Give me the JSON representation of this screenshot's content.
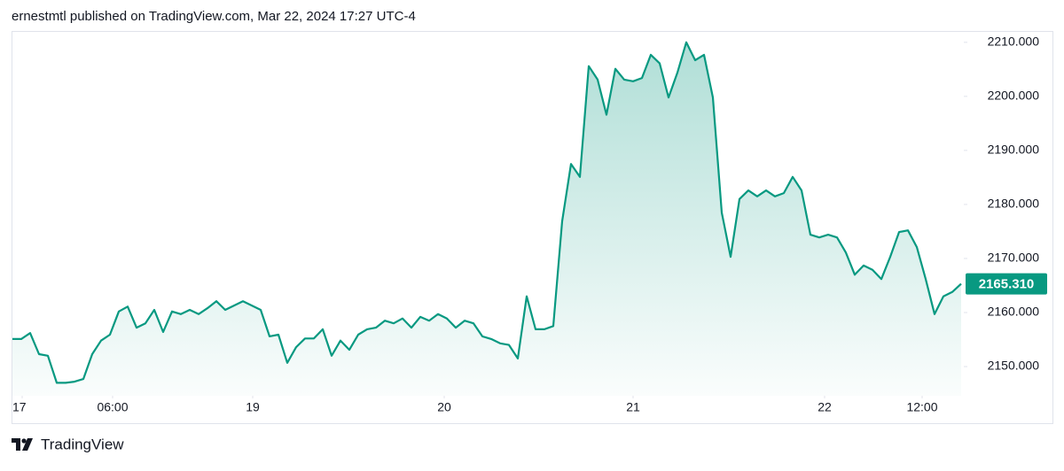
{
  "chart_data": {
    "type": "area",
    "title": "ernestmtl published on TradingView.com, Mar 22, 2024 17:27 UTC-4",
    "color": "#089981",
    "values": [
      2155.1,
      2155.1,
      2156.2,
      2152.3,
      2152.0,
      2147.0,
      2147.0,
      2147.2,
      2147.7,
      2152.3,
      2154.8,
      2155.9,
      2160.2,
      2161.1,
      2157.2,
      2158.0,
      2160.5,
      2156.4,
      2160.2,
      2159.7,
      2160.5,
      2159.7,
      2160.8,
      2162.1,
      2160.5,
      2161.3,
      2162.1,
      2161.3,
      2160.5,
      2155.6,
      2155.9,
      2150.7,
      2153.6,
      2155.2,
      2155.2,
      2156.9,
      2152.0,
      2154.8,
      2153.1,
      2155.9,
      2156.9,
      2157.2,
      2158.5,
      2158.0,
      2158.9,
      2157.2,
      2159.2,
      2158.5,
      2159.7,
      2158.9,
      2157.2,
      2158.5,
      2158.0,
      2155.6,
      2155.1,
      2154.3,
      2154.0,
      2151.5,
      2163.0,
      2156.9,
      2156.9,
      2157.5,
      2176.9,
      2187.5,
      2185.1,
      2205.6,
      2203.1,
      2196.6,
      2205.1,
      2203.1,
      2202.8,
      2203.4,
      2207.7,
      2206.1,
      2199.8,
      2204.4,
      2210.0,
      2206.7,
      2207.7,
      2199.8,
      2178.5,
      2170.3,
      2181.0,
      2182.6,
      2181.5,
      2182.6,
      2181.5,
      2182.1,
      2185.1,
      2182.6,
      2174.4,
      2173.9,
      2174.4,
      2173.9,
      2171.1,
      2167.0,
      2168.7,
      2167.9,
      2166.2,
      2170.3,
      2174.9,
      2175.2,
      2172.1,
      2166.2,
      2159.7,
      2163.0,
      2163.8,
      2165.31
    ],
    "xlim": [
      0,
      107.2
    ],
    "xticks": [
      {
        "value": 1.1,
        "label": "17"
      },
      {
        "value": 11.3,
        "label": "06:00"
      },
      {
        "value": 27.1,
        "label": "19"
      },
      {
        "value": 48.7,
        "label": "20"
      },
      {
        "value": 70,
        "label": "21"
      },
      {
        "value": 91.6,
        "label": "22"
      },
      {
        "value": 102.6,
        "label": "12:00"
      }
    ],
    "ylim": [
      2144.6,
      2212.1
    ],
    "yticks": [
      {
        "value": 2150,
        "label": "2150.000"
      },
      {
        "value": 2160,
        "label": "2160.000"
      },
      {
        "value": 2170,
        "label": "2170.000"
      },
      {
        "value": 2180,
        "label": "2180.000"
      },
      {
        "value": 2190,
        "label": "2190.000"
      },
      {
        "value": 2200,
        "label": "2200.000"
      },
      {
        "value": 2210,
        "label": "2210.000"
      }
    ],
    "current_price": {
      "value": 2165.31,
      "label": "2165.310"
    },
    "grid": false
  },
  "brand": "TradingView"
}
